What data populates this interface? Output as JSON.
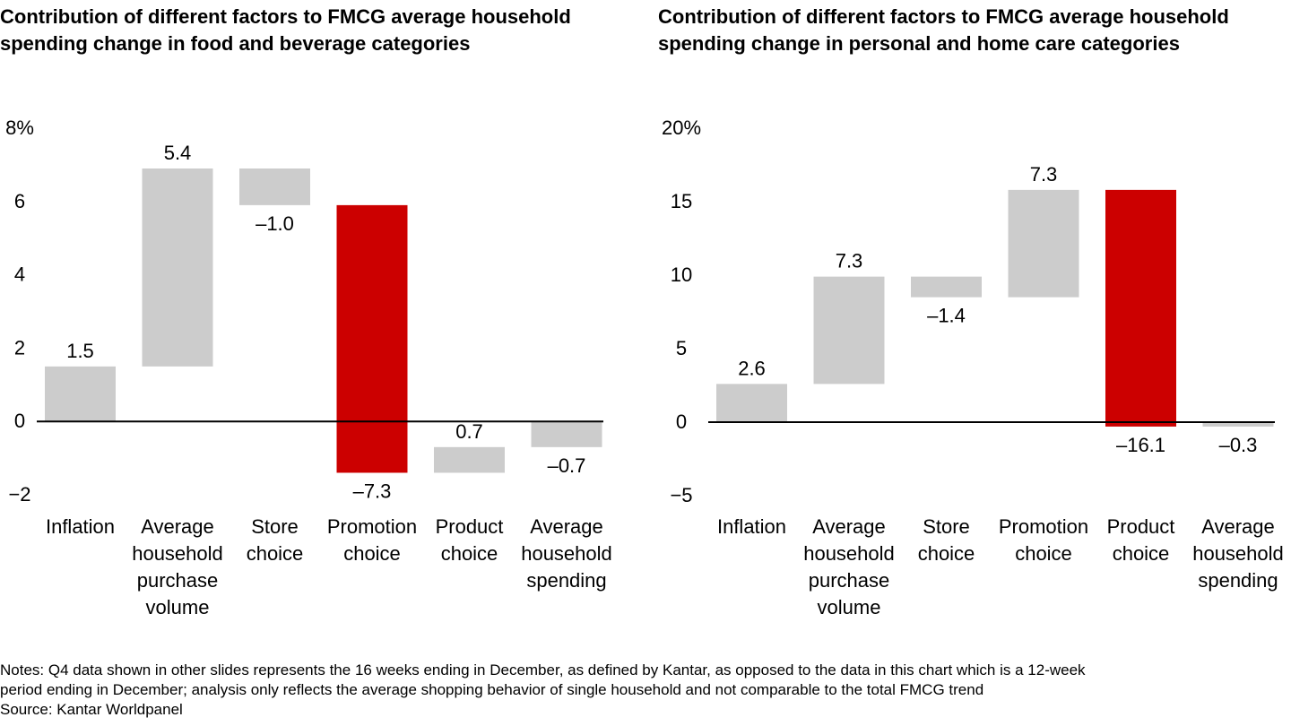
{
  "chart_data": [
    {
      "type": "bar",
      "subtype": "waterfall",
      "title": "Contribution of different factors to FMCG average household spending change in food and beverage categories",
      "ylim": [
        -2,
        8
      ],
      "yticks": [
        "8%",
        "6",
        "4",
        "2",
        "0",
        "−2"
      ],
      "ytick_values": [
        8,
        6,
        4,
        2,
        0,
        -2
      ],
      "grid": false,
      "colors": {
        "gray": "#cccccc",
        "highlight": "#cc0000",
        "axis": "#000000"
      },
      "categories": [
        [
          "Inflation"
        ],
        [
          "Average",
          "household",
          "purchase",
          "volume"
        ],
        [
          "Store",
          "choice"
        ],
        [
          "Promotion",
          "choice"
        ],
        [
          "Product",
          "choice"
        ],
        [
          "Average",
          "household",
          "spending"
        ]
      ],
      "bars": [
        {
          "start": 0,
          "end": 1.5,
          "label": "1.5",
          "color": "gray"
        },
        {
          "start": 1.5,
          "end": 6.9,
          "label": "5.4",
          "color": "gray"
        },
        {
          "start": 6.9,
          "end": 5.9,
          "label": "–1.0",
          "color": "gray"
        },
        {
          "start": 5.9,
          "end": -1.4,
          "label": "–7.3",
          "color": "highlight"
        },
        {
          "start": -1.4,
          "end": -0.7,
          "label": "0.7",
          "color": "gray"
        },
        {
          "start": 0,
          "end": -0.7,
          "label": "–0.7",
          "color": "gray"
        }
      ]
    },
    {
      "type": "bar",
      "subtype": "waterfall",
      "title": "Contribution of different factors to FMCG average household spending change in personal and home care categories",
      "ylim": [
        -5,
        20
      ],
      "yticks": [
        "20%",
        "15",
        "10",
        "5",
        "0",
        "−5"
      ],
      "ytick_values": [
        20,
        15,
        10,
        5,
        0,
        -5
      ],
      "grid": false,
      "colors": {
        "gray": "#cccccc",
        "highlight": "#cc0000",
        "axis": "#000000"
      },
      "categories": [
        [
          "Inflation"
        ],
        [
          "Average",
          "household",
          "purchase",
          "volume"
        ],
        [
          "Store",
          "choice"
        ],
        [
          "Promotion",
          "choice"
        ],
        [
          "Product",
          "choice"
        ],
        [
          "Average",
          "household",
          "spending"
        ]
      ],
      "bars": [
        {
          "start": 0,
          "end": 2.6,
          "label": "2.6",
          "color": "gray"
        },
        {
          "start": 2.6,
          "end": 9.9,
          "label": "7.3",
          "color": "gray"
        },
        {
          "start": 9.9,
          "end": 8.5,
          "label": "–1.4",
          "color": "gray"
        },
        {
          "start": 8.5,
          "end": 15.8,
          "label": "7.3",
          "color": "gray"
        },
        {
          "start": 15.8,
          "end": -0.3,
          "label": "–16.1",
          "color": "highlight"
        },
        {
          "start": 0,
          "end": -0.3,
          "label": "–0.3",
          "color": "gray"
        }
      ]
    }
  ],
  "notes": {
    "line1": "Notes: Q4 data shown in other slides represents the 16 weeks ending in December, as defined by Kantar, as opposed to the data in this chart which is a 12-week",
    "line2": "period ending in December; analysis only reflects the average shopping behavior of single household and not comparable to the total FMCG trend",
    "source": "Source: Kantar Worldpanel"
  }
}
